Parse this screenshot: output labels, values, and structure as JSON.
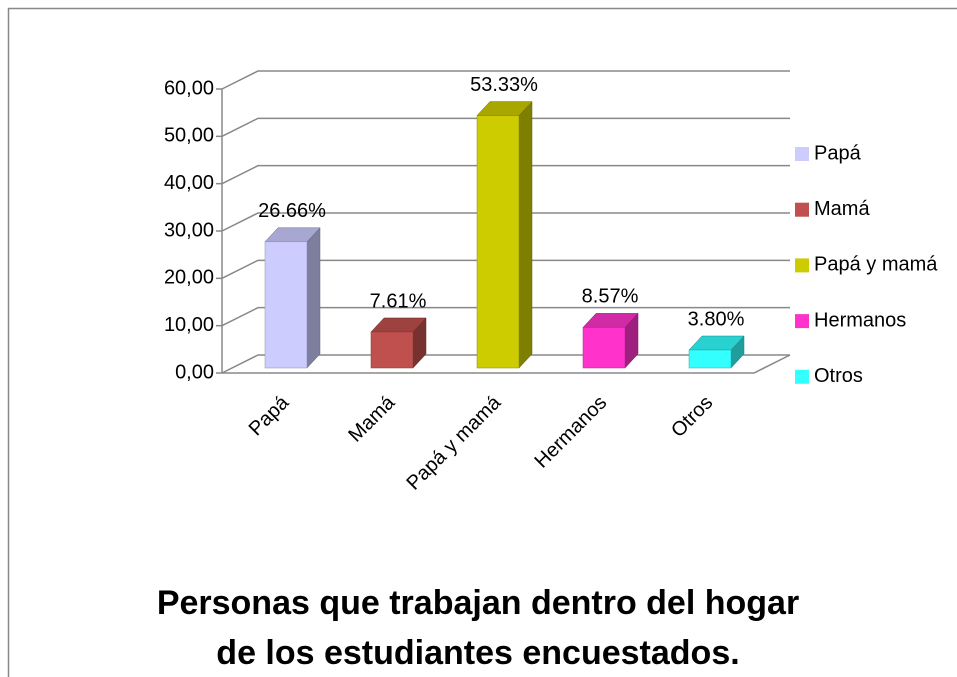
{
  "chart_data": {
    "type": "bar3d",
    "title": [
      "Personas que trabajan dentro del hogar",
      "de los estudiantes encuestados."
    ],
    "categories": [
      "Papá",
      "Mamá",
      "Papá y mamá",
      "Hermanos",
      "Otros"
    ],
    "values": [
      26.66,
      7.61,
      53.33,
      8.57,
      3.8
    ],
    "value_labels": [
      "26.66%",
      "7.61%",
      "53.33%",
      "8.57%",
      "3.80%"
    ],
    "colors": [
      "#ccccff",
      "#c0504d",
      "#cccc00",
      "#ff33cc",
      "#33ffff"
    ],
    "ylim": [
      0,
      60
    ],
    "yticks": [
      {
        "value": 0,
        "label": "0,00"
      },
      {
        "value": 10,
        "label": "10,00"
      },
      {
        "value": 20,
        "label": "20,00"
      },
      {
        "value": 30,
        "label": "30,00"
      },
      {
        "value": 40,
        "label": "40,00"
      },
      {
        "value": 50,
        "label": "50,00"
      },
      {
        "value": 60,
        "label": "60,00"
      }
    ],
    "grid": true,
    "legend": "right"
  }
}
